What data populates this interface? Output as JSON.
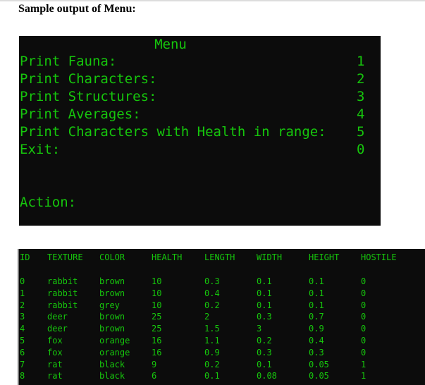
{
  "heading": "Sample output of Menu:",
  "menu": {
    "title": "Menu",
    "items": [
      {
        "label": "Print Fauna:",
        "key": "1"
      },
      {
        "label": "Print Characters:",
        "key": "2"
      },
      {
        "label": "Print Structures:",
        "key": "3"
      },
      {
        "label": "Print Averages:",
        "key": "4"
      },
      {
        "label": "Print Characters with Health in range:",
        "key": "5"
      },
      {
        "label": "Exit:",
        "key": "0"
      }
    ],
    "prompt": "Action:"
  },
  "table": {
    "headers": [
      "ID",
      "TEXTURE",
      "COLOR",
      "HEALTH",
      "LENGTH",
      "WIDTH",
      "HEIGHT",
      "HOSTILE"
    ],
    "rows": [
      [
        "0",
        "rabbit",
        "brown",
        "10",
        "0.3",
        "0.1",
        "0.1",
        "0"
      ],
      [
        "1",
        "rabbit",
        "brown",
        "10",
        "0.4",
        "0.1",
        "0.1",
        "0"
      ],
      [
        "2",
        "rabbit",
        "grey",
        "10",
        "0.2",
        "0.1",
        "0.1",
        "0"
      ],
      [
        "3",
        "deer",
        "brown",
        "25",
        "2",
        "0.3",
        "0.7",
        "0"
      ],
      [
        "4",
        "deer",
        "brown",
        "25",
        "1.5",
        "3",
        "0.9",
        "0"
      ],
      [
        "5",
        "fox",
        "orange",
        "16",
        "1.1",
        "0.2",
        "0.4",
        "0"
      ],
      [
        "6",
        "fox",
        "orange",
        "16",
        "0.9",
        "0.3",
        "0.3",
        "0"
      ],
      [
        "7",
        "rat",
        "black",
        "9",
        "0.2",
        "0.1",
        "0.05",
        "1"
      ],
      [
        "8",
        "rat",
        "black",
        "6",
        "0.1",
        "0.08",
        "0.05",
        "1"
      ]
    ]
  }
}
